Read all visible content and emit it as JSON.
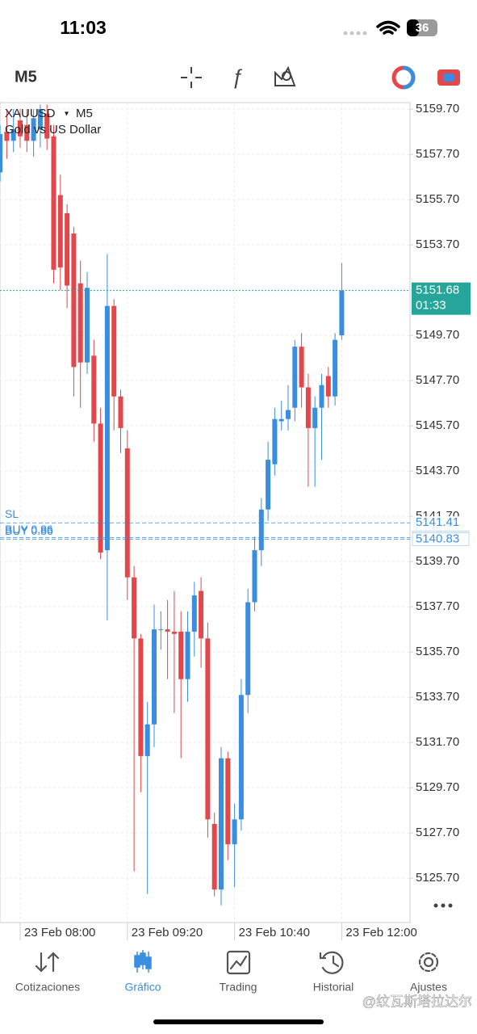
{
  "status_bar": {
    "time": "11:03",
    "battery": "36"
  },
  "toolbar": {
    "timeframe": "M5"
  },
  "chart_data": {
    "type": "candlestick",
    "symbol": "XAUUSD",
    "timeframe": "M5",
    "description": "Gold vs US Dollar",
    "categories": [
      null,
      null,
      null,
      "23 Feb 08:00",
      null,
      null,
      null,
      null,
      null,
      null,
      null,
      null,
      null,
      null,
      null,
      null,
      null,
      null,
      null,
      "23 Feb 09:20",
      null,
      null,
      null,
      null,
      null,
      null,
      null,
      null,
      null,
      null,
      null,
      null,
      null,
      null,
      null,
      "23 Feb 10:40",
      null,
      null,
      null,
      null,
      null,
      null,
      null,
      null,
      null,
      null,
      null,
      null,
      null,
      null,
      null,
      "23 Feb 12:00"
    ],
    "open": [
      5156.9,
      5158.7,
      5158.3,
      5159.2,
      5159.0,
      5158.3,
      5158.8,
      5159.5,
      5158.5,
      5155.9,
      5155.1,
      5154.2,
      5152.0,
      5148.5,
      5148.8,
      5145.8,
      5140.2,
      5151.0,
      5147.0,
      5144.7,
      5139.0,
      5136.3,
      5131.1,
      5132.5,
      5136.7,
      5136.7,
      5136.6,
      5136.6,
      5134.5,
      5136.6,
      5138.4,
      5136.3,
      5128.1,
      5125.2,
      5131.0,
      5127.2,
      5128.3,
      5133.8,
      5137.9,
      5140.2,
      5142.0,
      5144.0,
      5145.9,
      5146.0,
      5146.5,
      5149.2,
      5147.4,
      5145.6,
      5146.5,
      5147.9,
      5147.0,
      5149.7
    ],
    "high": [
      5159.0,
      5159.7,
      5159.7,
      5159.7,
      5159.7,
      5159.7,
      5159.9,
      5159.9,
      5159.0,
      5156.8,
      5155.5,
      5154.5,
      5153.0,
      5152.5,
      5149.5,
      5146.5,
      5153.3,
      5151.3,
      5147.3,
      5145.5,
      5139.5,
      5136.5,
      5133.5,
      5137.8,
      5137.5,
      5138.0,
      5138.4,
      5137.5,
      5137.5,
      5138.8,
      5139.0,
      5137.0,
      5128.6,
      5131.5,
      5131.3,
      5129.0,
      5134.5,
      5138.5,
      5140.8,
      5142.5,
      5145.0,
      5146.5,
      5146.8,
      5147.5,
      5149.5,
      5149.8,
      5148.0,
      5147.0,
      5148.0,
      5148.3,
      5149.8,
      5152.9
    ],
    "low": [
      5156.5,
      5157.5,
      5157.8,
      5158.0,
      5157.8,
      5157.6,
      5158.0,
      5157.9,
      5152.0,
      5151.7,
      5150.9,
      5147.0,
      5146.5,
      5148.0,
      5145.0,
      5139.8,
      5137.1,
      5145.5,
      5144.5,
      5138.0,
      5126.0,
      5129.5,
      5125.0,
      5131.5,
      5135.8,
      5134.5,
      5133.0,
      5131.0,
      5133.5,
      5135.5,
      5135.0,
      5127.5,
      5124.9,
      5124.5,
      5126.5,
      5125.3,
      5127.8,
      5133.0,
      5137.5,
      5139.5,
      5141.5,
      5143.5,
      5145.5,
      5145.5,
      5145.9,
      5146.5,
      5143.0,
      5143.0,
      5144.2,
      5146.5,
      5146.6,
      5149.5
    ],
    "close": [
      5158.6,
      5158.3,
      5158.8,
      5158.5,
      5158.3,
      5159.3,
      5159.7,
      5158.4,
      5152.6,
      5152.7,
      5151.9,
      5148.3,
      5148.5,
      5151.8,
      5145.8,
      5140.1,
      5151.0,
      5147.0,
      5145.6,
      5139.0,
      5136.3,
      5131.1,
      5132.5,
      5136.7,
      5136.7,
      5136.6,
      5136.5,
      5134.5,
      5136.6,
      5138.2,
      5136.3,
      5128.3,
      5125.2,
      5131.0,
      5127.2,
      5128.3,
      5133.8,
      5137.9,
      5140.2,
      5142.0,
      5144.2,
      5146.0,
      5146.0,
      5146.4,
      5149.2,
      5147.4,
      5145.6,
      5146.5,
      5147.5,
      5147.0,
      5149.5,
      5151.68
    ],
    "up_color": "#3a8ee0",
    "down_color": "#e2474b",
    "ylim": [
      5123.74,
      5159.99
    ],
    "yticks": [
      {
        "value": 5159.7,
        "label": "5159.70"
      },
      {
        "value": 5157.7,
        "label": "5157.70"
      },
      {
        "value": 5155.7,
        "label": "5155.70"
      },
      {
        "value": 5153.7,
        "label": "5153.70"
      },
      {
        "value": 5151.7,
        "label": "5151.70"
      },
      {
        "value": 5149.7,
        "label": "5149.70"
      },
      {
        "value": 5147.7,
        "label": "5147.70"
      },
      {
        "value": 5145.7,
        "label": "5145.70"
      },
      {
        "value": 5143.7,
        "label": "5143.70"
      },
      {
        "value": 5141.7,
        "label": "5141.70"
      },
      {
        "value": 5139.7,
        "label": "5139.70"
      },
      {
        "value": 5137.7,
        "label": "5137.70"
      },
      {
        "value": 5135.7,
        "label": "5135.70"
      },
      {
        "value": 5133.7,
        "label": "5133.70"
      },
      {
        "value": 5131.7,
        "label": "5131.70"
      },
      {
        "value": 5129.7,
        "label": "5129.70"
      },
      {
        "value": 5127.7,
        "label": "5127.70"
      },
      {
        "value": 5125.7,
        "label": "5125.70"
      }
    ],
    "grid": true,
    "bid": {
      "value": 5151.68,
      "timer": "01:33",
      "color": "#26a69a"
    },
    "orders": [
      {
        "label": "SL",
        "price": 5141.41
      },
      {
        "label": "BUY 0.86",
        "price": 5140.83
      },
      {
        "label": "BUY 0.86",
        "price": 5140.83
      }
    ],
    "order_color": "#3a8ee0"
  },
  "tab_bar": {
    "items": [
      "Cotizaciones",
      "Gráfico",
      "Trading",
      "Historial",
      "Ajustes"
    ],
    "active": 1
  },
  "watermark": "@纹瓦斯塔拉达尔"
}
